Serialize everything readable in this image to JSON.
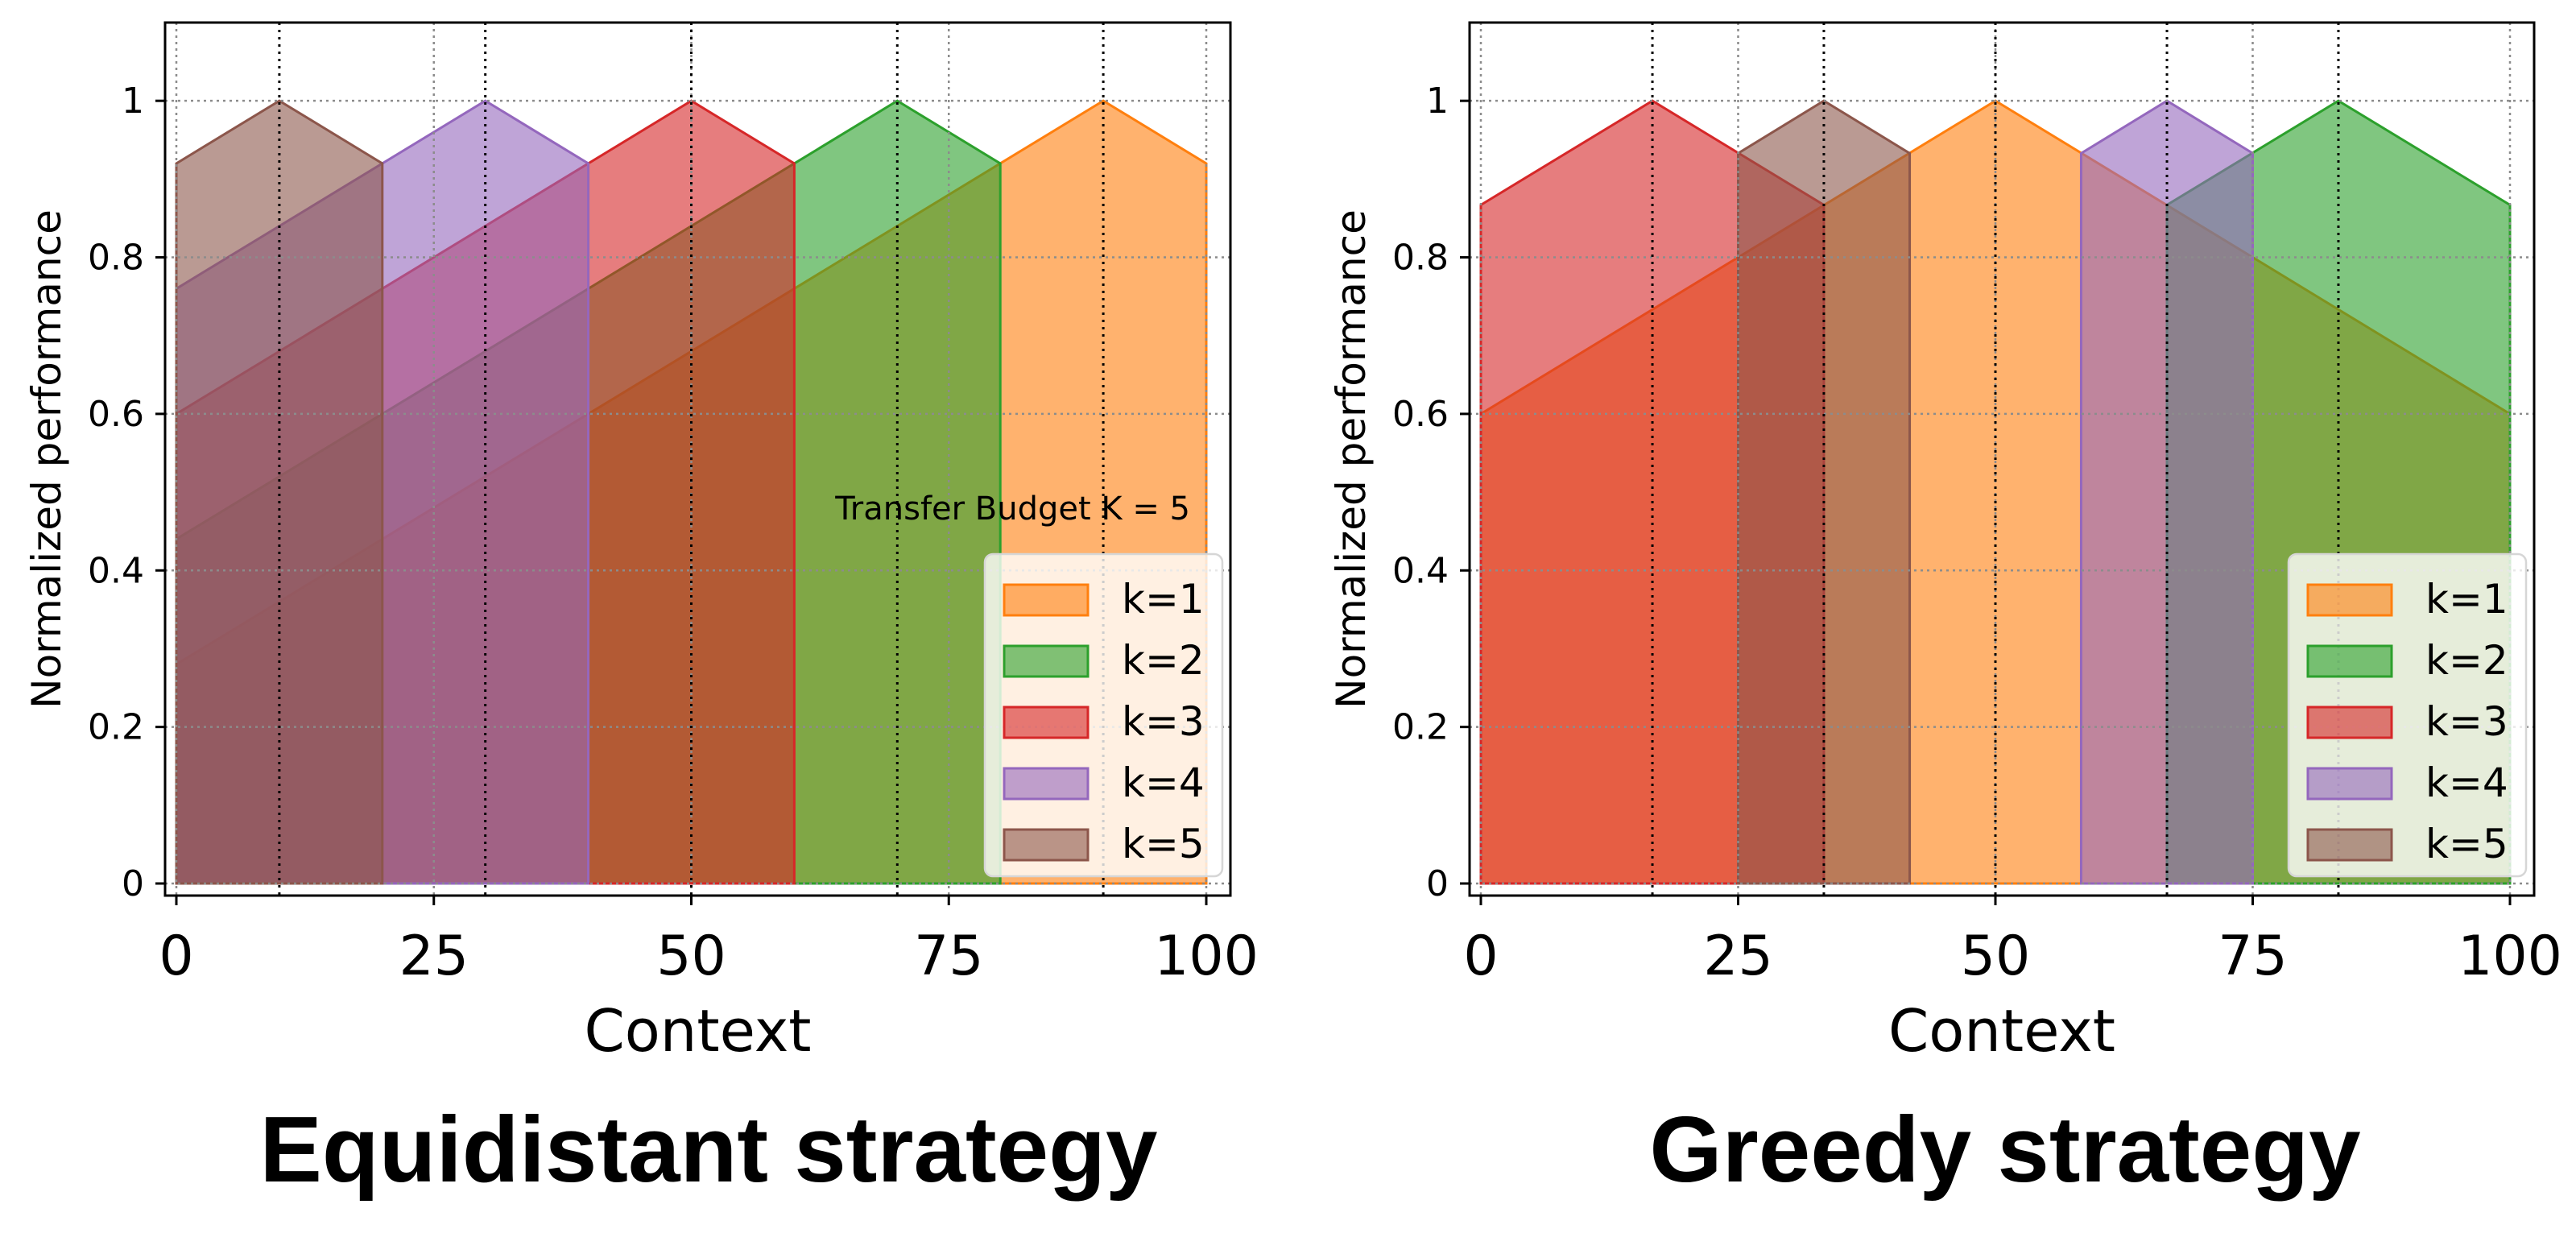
{
  "captions": [
    "Equidistant strategy",
    "Greedy strategy"
  ],
  "colors": {
    "k=1": "#ff7f0e",
    "k=2": "#2ca02c",
    "k=3": "#d62728",
    "k=4": "#9467bd",
    "k=5": "#8c564b"
  },
  "chart_data": [
    {
      "type": "area",
      "title": "",
      "caption": "Equidistant strategy",
      "xlabel": "Context",
      "ylabel": "Normalized performance",
      "xlim": [
        0,
        100
      ],
      "ylim": [
        0,
        1.1
      ],
      "xticks": [
        "0",
        "25",
        "50",
        "75",
        "100"
      ],
      "yticks": [
        "0",
        "0.2",
        "0.4",
        "0.6",
        "0.8",
        "1"
      ],
      "grid": true,
      "legend_position": "lower-right",
      "annotation": "Transfer Budget K = 5",
      "vlines": [
        10,
        30,
        50,
        70,
        90
      ],
      "series": [
        {
          "name": "k=1",
          "x": [
            0,
            90,
            100
          ],
          "y": [
            0.28,
            1.0,
            0.92
          ]
        },
        {
          "name": "k=2",
          "x": [
            0,
            70,
            80
          ],
          "y": [
            0.44,
            1.0,
            0.92
          ]
        },
        {
          "name": "k=3",
          "x": [
            0,
            50,
            60
          ],
          "y": [
            0.6,
            1.0,
            0.92
          ]
        },
        {
          "name": "k=4",
          "x": [
            0,
            30,
            40
          ],
          "y": [
            0.76,
            1.0,
            0.92
          ]
        },
        {
          "name": "k=5",
          "x": [
            0,
            10,
            20
          ],
          "y": [
            0.92,
            1.0,
            0.92
          ]
        }
      ]
    },
    {
      "type": "area",
      "title": "",
      "caption": "Greedy strategy",
      "xlabel": "Context",
      "ylabel": "Normalized performance",
      "xlim": [
        0,
        100
      ],
      "ylim": [
        0,
        1.1
      ],
      "xticks": [
        "0",
        "25",
        "50",
        "75",
        "100"
      ],
      "yticks": [
        "0",
        "0.2",
        "0.4",
        "0.6",
        "0.8",
        "1"
      ],
      "grid": true,
      "legend_position": "lower-right",
      "annotation": "",
      "vlines": [
        16.67,
        33.33,
        50,
        66.67,
        83.33
      ],
      "series": [
        {
          "name": "k=1",
          "x": [
            0,
            50,
            100
          ],
          "y": [
            0.6,
            1.0,
            0.6
          ]
        },
        {
          "name": "k=2",
          "x": [
            66.67,
            83.33,
            100
          ],
          "y": [
            0.867,
            1.0,
            0.867
          ]
        },
        {
          "name": "k=3",
          "x": [
            0,
            16.67,
            33.33
          ],
          "y": [
            0.867,
            1.0,
            0.867
          ]
        },
        {
          "name": "k=4",
          "x": [
            58.33,
            66.67,
            75
          ],
          "y": [
            0.933,
            1.0,
            0.933
          ]
        },
        {
          "name": "k=5",
          "x": [
            25,
            33.33,
            41.67
          ],
          "y": [
            0.933,
            1.0,
            0.933
          ]
        }
      ]
    }
  ]
}
